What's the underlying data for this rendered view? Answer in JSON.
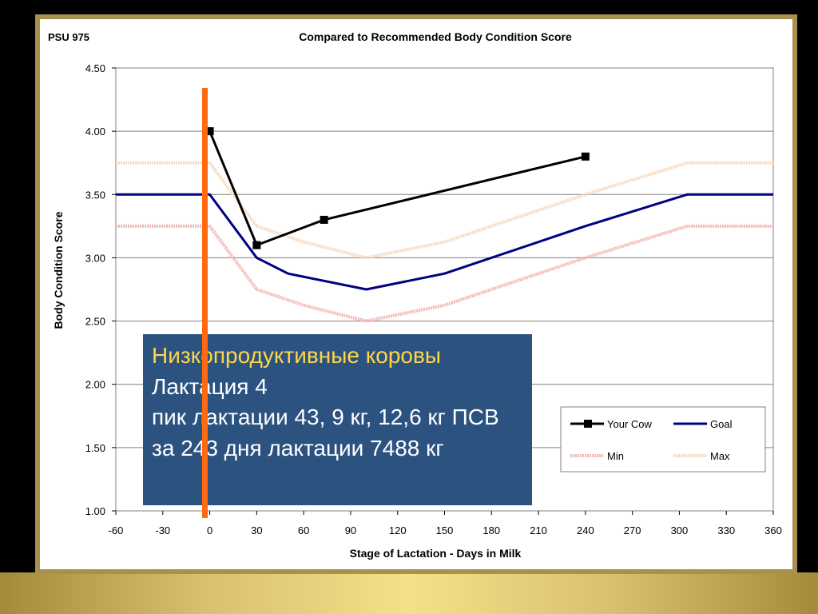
{
  "page_label": "PSU 975",
  "overlay": {
    "line1": "Низкопродуктивные коровы",
    "line2": "Лактация 4",
    "line3": "пик лактации 43, 9 кг, 12,6 кг ПСВ",
    "line4": "за 243 дня лактации 7488 кг"
  },
  "colors": {
    "your_cow": "#000000",
    "goal": "#000080",
    "min": "#f4b6b6",
    "max": "#f7d9bf",
    "overlay_bg": "#2c5380",
    "overlay_highlight": "#ffd54a",
    "marker_bar": "#ff6a10"
  },
  "chart_data": {
    "type": "line",
    "title": "Compared to Recommended Body Condition Score",
    "xlabel": "Stage of Lactation - Days in Milk",
    "ylabel": "Body Condition Score",
    "xlim": [
      -60,
      360
    ],
    "ylim": [
      1.0,
      4.5
    ],
    "xticks": [
      -60,
      -30,
      0,
      30,
      60,
      90,
      120,
      150,
      180,
      210,
      240,
      270,
      300,
      330,
      360
    ],
    "yticks": [
      "1.00",
      "1.50",
      "2.00",
      "2.50",
      "3.00",
      "3.50",
      "4.00",
      "4.50"
    ],
    "grid": true,
    "legend_position": "bottom-right",
    "series": [
      {
        "name": "Your Cow",
        "style": "solid-markers",
        "x": [
          0,
          30,
          73,
          240
        ],
        "y": [
          4.0,
          3.1,
          3.3,
          3.8
        ]
      },
      {
        "name": "Goal",
        "style": "solid",
        "x": [
          -60,
          0,
          30,
          50,
          100,
          150,
          240,
          305,
          360
        ],
        "y": [
          3.5,
          3.5,
          3.0,
          2.875,
          2.75,
          2.875,
          3.25,
          3.5,
          3.5
        ]
      },
      {
        "name": "Min",
        "style": "dotted",
        "x": [
          -60,
          0,
          30,
          60,
          100,
          150,
          240,
          305,
          360
        ],
        "y": [
          3.25,
          3.25,
          2.75,
          2.625,
          2.5,
          2.625,
          3.0,
          3.25,
          3.25
        ]
      },
      {
        "name": "Max",
        "style": "dotted",
        "x": [
          -60,
          0,
          30,
          60,
          100,
          150,
          240,
          305,
          360
        ],
        "y": [
          3.75,
          3.75,
          3.25,
          3.125,
          3.0,
          3.125,
          3.5,
          3.75,
          3.75
        ]
      }
    ],
    "marker_line_x": -3
  }
}
